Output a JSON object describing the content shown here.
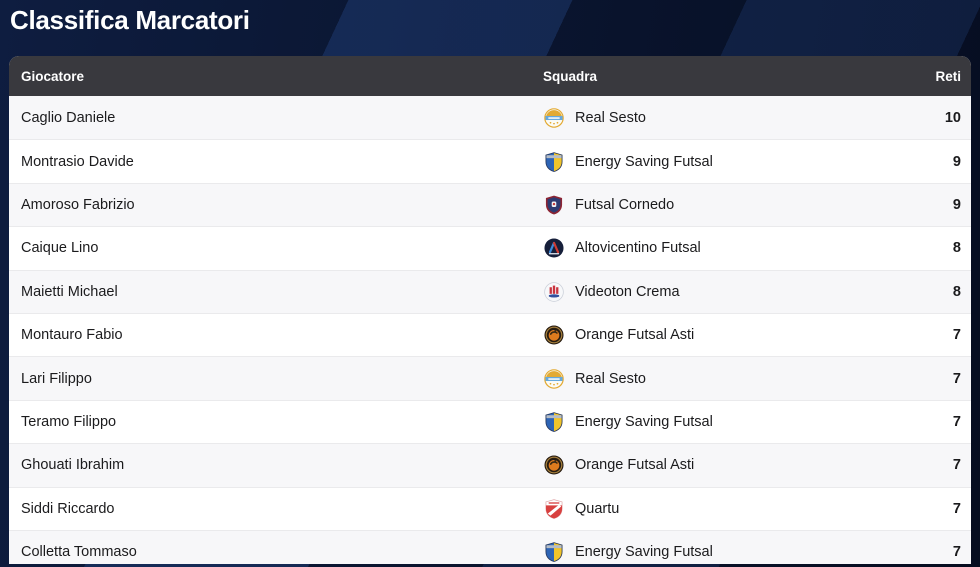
{
  "page": {
    "title": "Classifica Marcatori"
  },
  "colors": {
    "background_navy": "#0a1530",
    "background_navy_light": "#0e1d40",
    "background_navy_dark": "#060d20",
    "stripe_blue": "#2d55a0",
    "title_text": "#ffffff",
    "header_bg": "#39393e",
    "header_text": "#ffffff",
    "row_odd_bg": "#f7f7f9",
    "row_even_bg": "#ffffff",
    "row_border": "#eaeaec",
    "text_dark": "#1b1b1d"
  },
  "table": {
    "columns": {
      "player": "Giocatore",
      "team": "Squadra",
      "goals": "Reti"
    },
    "rows": [
      {
        "player": "Caglio Daniele",
        "team": "Real Sesto",
        "logo": "real-sesto",
        "goals": "10"
      },
      {
        "player": "Montrasio Davide",
        "team": "Energy Saving Futsal",
        "logo": "energy-saving-futsal",
        "goals": "9"
      },
      {
        "player": "Amoroso Fabrizio",
        "team": "Futsal Cornedo",
        "logo": "futsal-cornedo",
        "goals": "9"
      },
      {
        "player": "Caique Lino",
        "team": "Altovicentino Futsal",
        "logo": "altovicentino-futsal",
        "goals": "8"
      },
      {
        "player": "Maietti Michael",
        "team": "Videoton Crema",
        "logo": "videoton-crema",
        "goals": "8"
      },
      {
        "player": "Montauro Fabio",
        "team": "Orange Futsal Asti",
        "logo": "orange-futsal-asti",
        "goals": "7"
      },
      {
        "player": "Lari Filippo",
        "team": "Real Sesto",
        "logo": "real-sesto",
        "goals": "7"
      },
      {
        "player": "Teramo Filippo",
        "team": "Energy Saving Futsal",
        "logo": "energy-saving-futsal",
        "goals": "7"
      },
      {
        "player": "Ghouati Ibrahim",
        "team": "Orange Futsal Asti",
        "logo": "orange-futsal-asti",
        "goals": "7"
      },
      {
        "player": "Siddi Riccardo",
        "team": "Quartu",
        "logo": "quartu",
        "goals": "7"
      },
      {
        "player": "Colletta Tommaso",
        "team": "Energy Saving Futsal",
        "logo": "energy-saving-futsal",
        "goals": "7"
      }
    ]
  },
  "team_logos": {
    "real-sesto": {
      "icon": "round-crest-icon",
      "gold": "#e3aa33",
      "blue": "#66a9de",
      "white": "#fbfbf6"
    },
    "energy-saving-futsal": {
      "icon": "shield-icon",
      "blue": "#2d64b5",
      "yellow": "#f0c42a",
      "silver": "#b4bcc6",
      "outline": "#26365a"
    },
    "futsal-cornedo": {
      "icon": "shield-icon",
      "maroon": "#8c2433",
      "blue": "#2d3b72",
      "white": "#f2f2f4",
      "red": "#c23a3a"
    },
    "altovicentino-futsal": {
      "icon": "round-badge-icon",
      "bg": "#161f3a",
      "blue": "#3c8ada",
      "red": "#ce3a33",
      "white": "#e9eef6"
    },
    "videoton-crema": {
      "icon": "round-crest-icon",
      "bg": "#f7f8fa",
      "red": "#c9333f",
      "blue": "#32509e",
      "border": "#c9ced8"
    },
    "orange-futsal-asti": {
      "icon": "round-badge-icon",
      "bg": "#271c11",
      "ring": "#a8823e",
      "orange": "#dd7b1e",
      "dark": "#3a2a14"
    },
    "quartu": {
      "icon": "shield-icon",
      "red": "#d8403f",
      "white": "#ffffff",
      "border": "#e0a9ab"
    }
  }
}
